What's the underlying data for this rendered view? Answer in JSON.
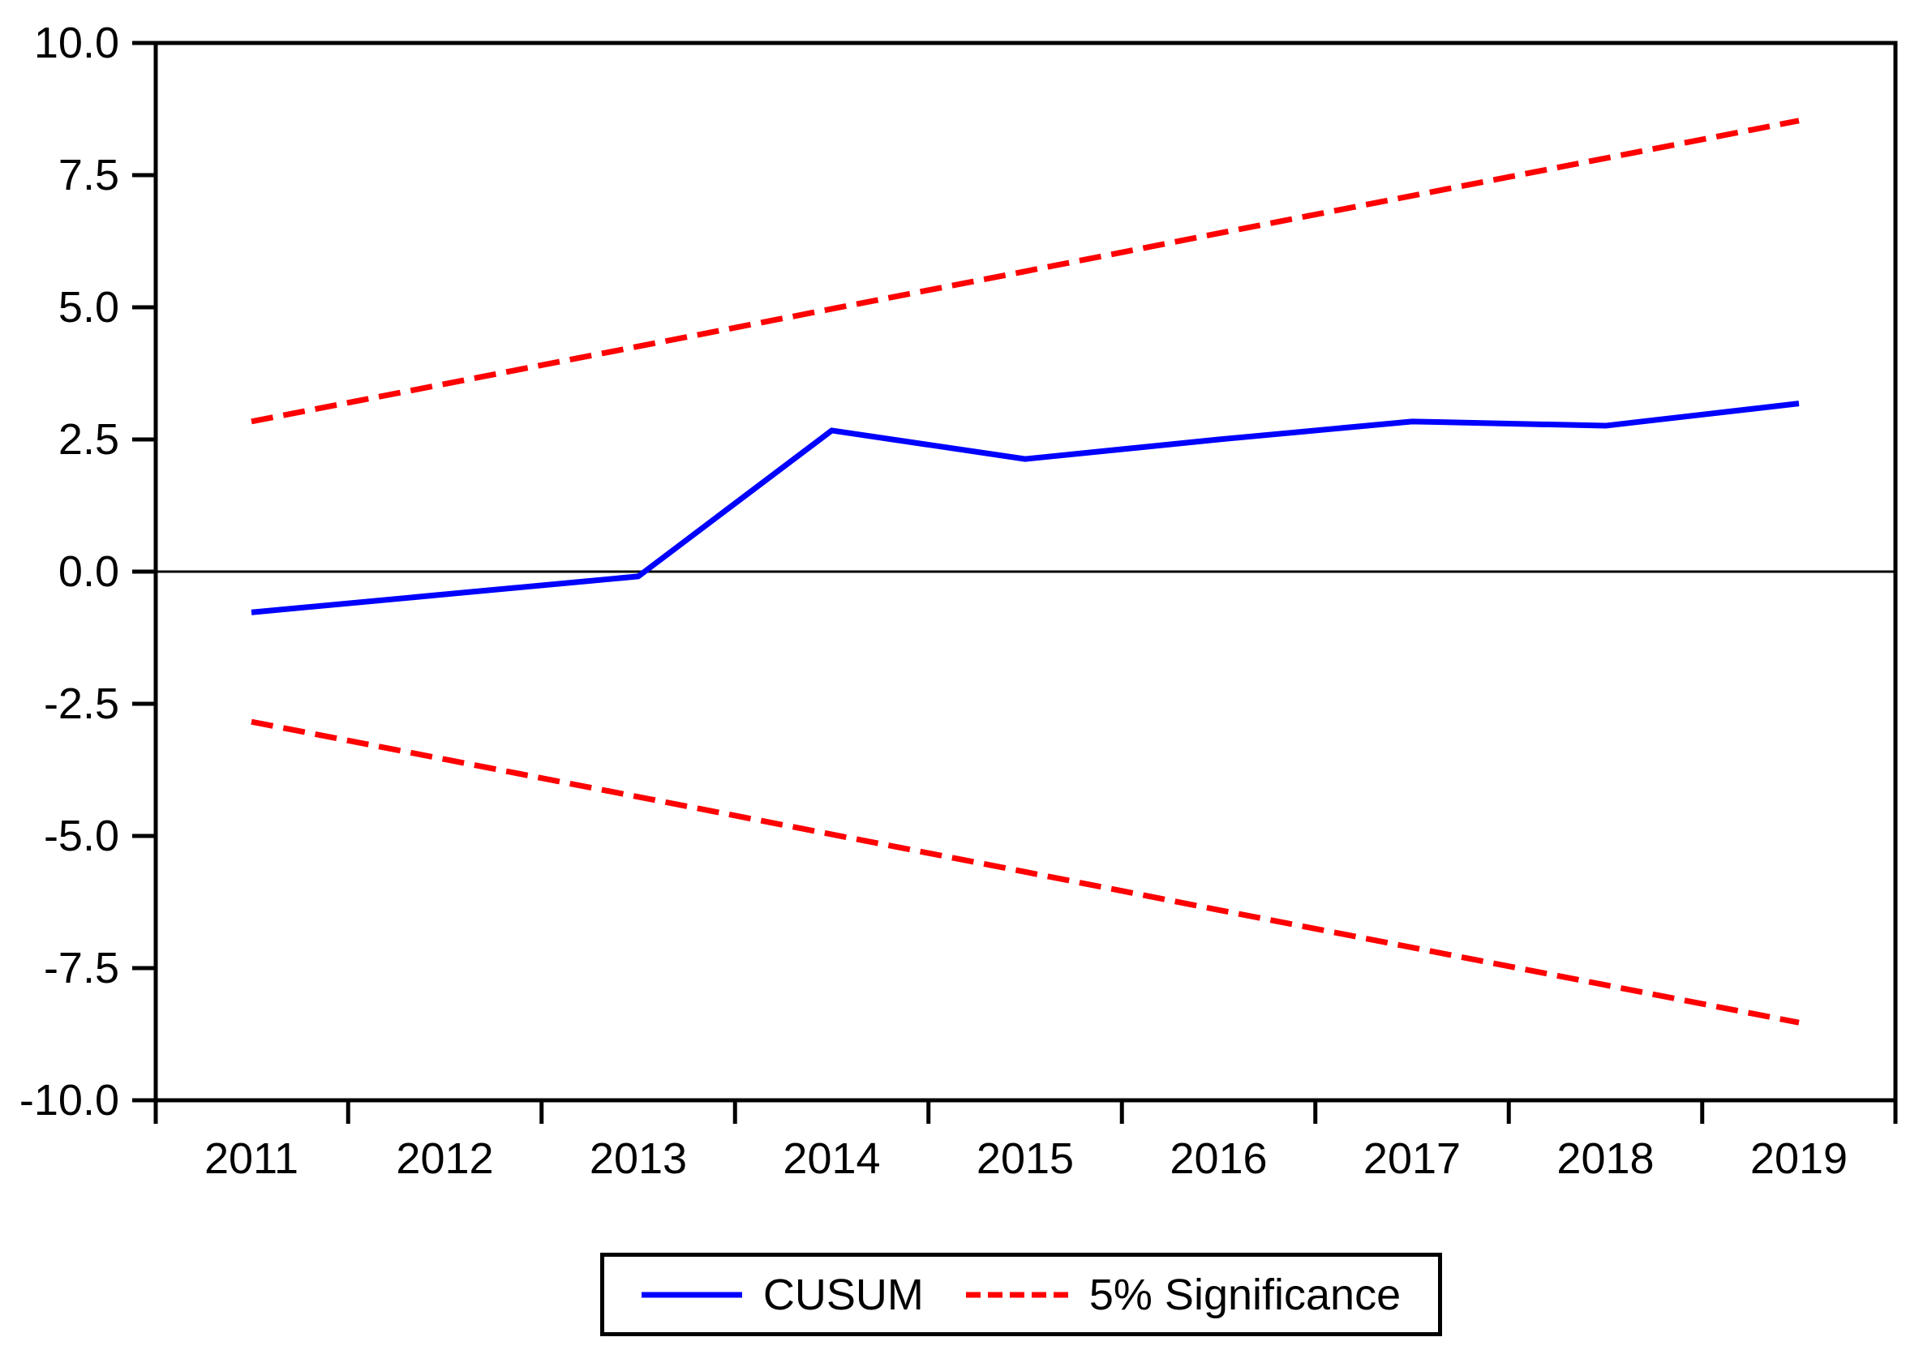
{
  "chart_data": {
    "type": "line",
    "title": "",
    "xlabel": "",
    "ylabel": "",
    "x_categories": [
      "2011",
      "2012",
      "2013",
      "2014",
      "2015",
      "2016",
      "2017",
      "2018",
      "2019"
    ],
    "ylim": [
      -10,
      10
    ],
    "y_tick_labels": [
      "10.0",
      "7.5",
      "5.0",
      "2.5",
      "0.0",
      "-2.5",
      "-5.0",
      "-7.5",
      "-10.0"
    ],
    "grid": false,
    "zero_line": true,
    "legend_position": "bottom-center",
    "series": [
      {
        "id": "cusum",
        "name": "CUSUM",
        "style": "solid",
        "color": "#0000ff",
        "values": [
          -0.77,
          -0.43,
          -0.09,
          2.67,
          2.13,
          2.5,
          2.84,
          2.76,
          3.18
        ]
      },
      {
        "id": "significance-upper",
        "name": "5% Significance (upper bound)",
        "style": "dashed",
        "color": "#ff0000",
        "values": [
          2.84,
          3.55,
          4.26,
          4.97,
          5.68,
          6.4,
          7.11,
          7.82,
          8.53
        ]
      },
      {
        "id": "significance-lower",
        "name": "5% Significance (lower bound)",
        "style": "dashed",
        "color": "#ff0000",
        "values": [
          -2.84,
          -3.55,
          -4.26,
          -4.97,
          -5.68,
          -6.4,
          -7.11,
          -7.82,
          -8.53
        ]
      }
    ],
    "legend": {
      "items": [
        {
          "label": "CUSUM",
          "style": "solid",
          "color": "#0000ff"
        },
        {
          "label": "5% Significance",
          "style": "dashed",
          "color": "#ff0000"
        }
      ]
    },
    "colors": {
      "axis": "#000000",
      "text": "#000000",
      "background": "#ffffff"
    }
  }
}
